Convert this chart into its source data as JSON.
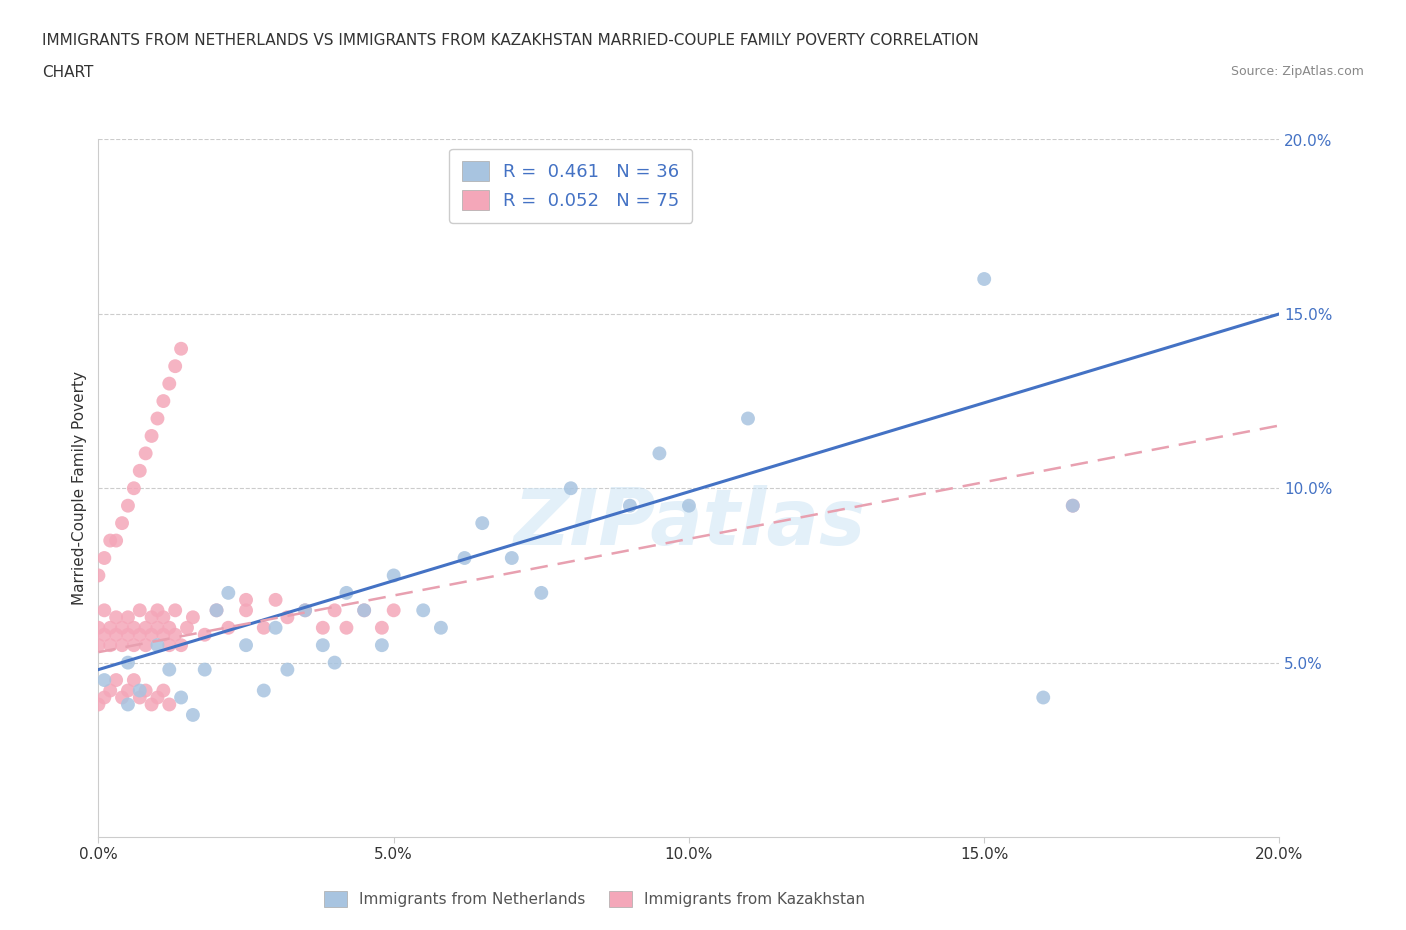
{
  "title_line1": "IMMIGRANTS FROM NETHERLANDS VS IMMIGRANTS FROM KAZAKHSTAN MARRIED-COUPLE FAMILY POVERTY CORRELATION",
  "title_line2": "CHART",
  "source": "Source: ZipAtlas.com",
  "ylabel": "Married-Couple Family Poverty",
  "xlim": [
    0.0,
    0.2
  ],
  "ylim": [
    0.0,
    0.2
  ],
  "xticks": [
    0.0,
    0.05,
    0.1,
    0.15,
    0.2
  ],
  "yticks": [
    0.05,
    0.1,
    0.15,
    0.2
  ],
  "xticklabels": [
    "0.0%",
    "5.0%",
    "10.0%",
    "15.0%",
    "20.0%"
  ],
  "yticklabels": [
    "5.0%",
    "10.0%",
    "15.0%",
    "20.0%"
  ],
  "netherlands_color": "#a8c4e0",
  "kazakhstan_color": "#f4a7b9",
  "netherlands_line_color": "#4472c4",
  "kazakhstan_line_color": "#e8a0b0",
  "R_netherlands": 0.461,
  "N_netherlands": 36,
  "R_kazakhstan": 0.052,
  "N_kazakhstan": 75,
  "watermark": "ZIPatlas",
  "legend_label_netherlands": "Immigrants from Netherlands",
  "legend_label_kazakhstan": "Immigrants from Kazakhstan",
  "nl_line_x0": 0.0,
  "nl_line_y0": 0.048,
  "nl_line_x1": 0.2,
  "nl_line_y1": 0.15,
  "kz_line_x0": 0.0,
  "kz_line_y0": 0.053,
  "kz_line_x1": 0.2,
  "kz_line_y1": 0.118,
  "netherlands_x": [
    0.001,
    0.005,
    0.005,
    0.007,
    0.01,
    0.012,
    0.014,
    0.016,
    0.018,
    0.02,
    0.022,
    0.025,
    0.028,
    0.03,
    0.032,
    0.035,
    0.038,
    0.04,
    0.042,
    0.045,
    0.048,
    0.05,
    0.055,
    0.058,
    0.062,
    0.065,
    0.07,
    0.075,
    0.08,
    0.09,
    0.095,
    0.1,
    0.11,
    0.15,
    0.16,
    0.165
  ],
  "netherlands_y": [
    0.045,
    0.05,
    0.038,
    0.042,
    0.055,
    0.048,
    0.04,
    0.035,
    0.048,
    0.065,
    0.07,
    0.055,
    0.042,
    0.06,
    0.048,
    0.065,
    0.055,
    0.05,
    0.07,
    0.065,
    0.055,
    0.075,
    0.065,
    0.06,
    0.08,
    0.09,
    0.08,
    0.07,
    0.1,
    0.095,
    0.11,
    0.095,
    0.12,
    0.16,
    0.04,
    0.095
  ],
  "kazakhstan_x": [
    0.0,
    0.0,
    0.001,
    0.001,
    0.002,
    0.002,
    0.003,
    0.003,
    0.004,
    0.004,
    0.005,
    0.005,
    0.006,
    0.006,
    0.007,
    0.007,
    0.008,
    0.008,
    0.009,
    0.009,
    0.01,
    0.01,
    0.011,
    0.011,
    0.012,
    0.012,
    0.013,
    0.013,
    0.014,
    0.015,
    0.016,
    0.018,
    0.02,
    0.022,
    0.025,
    0.028,
    0.03,
    0.032,
    0.035,
    0.038,
    0.04,
    0.042,
    0.045,
    0.048,
    0.05,
    0.0,
    0.001,
    0.002,
    0.003,
    0.004,
    0.005,
    0.006,
    0.007,
    0.008,
    0.009,
    0.01,
    0.011,
    0.012,
    0.013,
    0.014,
    0.0,
    0.001,
    0.002,
    0.003,
    0.004,
    0.005,
    0.006,
    0.007,
    0.008,
    0.009,
    0.01,
    0.011,
    0.012,
    0.165,
    0.025
  ],
  "kazakhstan_y": [
    0.055,
    0.06,
    0.065,
    0.058,
    0.055,
    0.06,
    0.063,
    0.058,
    0.055,
    0.06,
    0.063,
    0.058,
    0.055,
    0.06,
    0.065,
    0.058,
    0.055,
    0.06,
    0.063,
    0.058,
    0.065,
    0.06,
    0.063,
    0.058,
    0.055,
    0.06,
    0.065,
    0.058,
    0.055,
    0.06,
    0.063,
    0.058,
    0.065,
    0.06,
    0.065,
    0.06,
    0.068,
    0.063,
    0.065,
    0.06,
    0.065,
    0.06,
    0.065,
    0.06,
    0.065,
    0.075,
    0.08,
    0.085,
    0.085,
    0.09,
    0.095,
    0.1,
    0.105,
    0.11,
    0.115,
    0.12,
    0.125,
    0.13,
    0.135,
    0.14,
    0.038,
    0.04,
    0.042,
    0.045,
    0.04,
    0.042,
    0.045,
    0.04,
    0.042,
    0.038,
    0.04,
    0.042,
    0.038,
    0.095,
    0.068
  ]
}
